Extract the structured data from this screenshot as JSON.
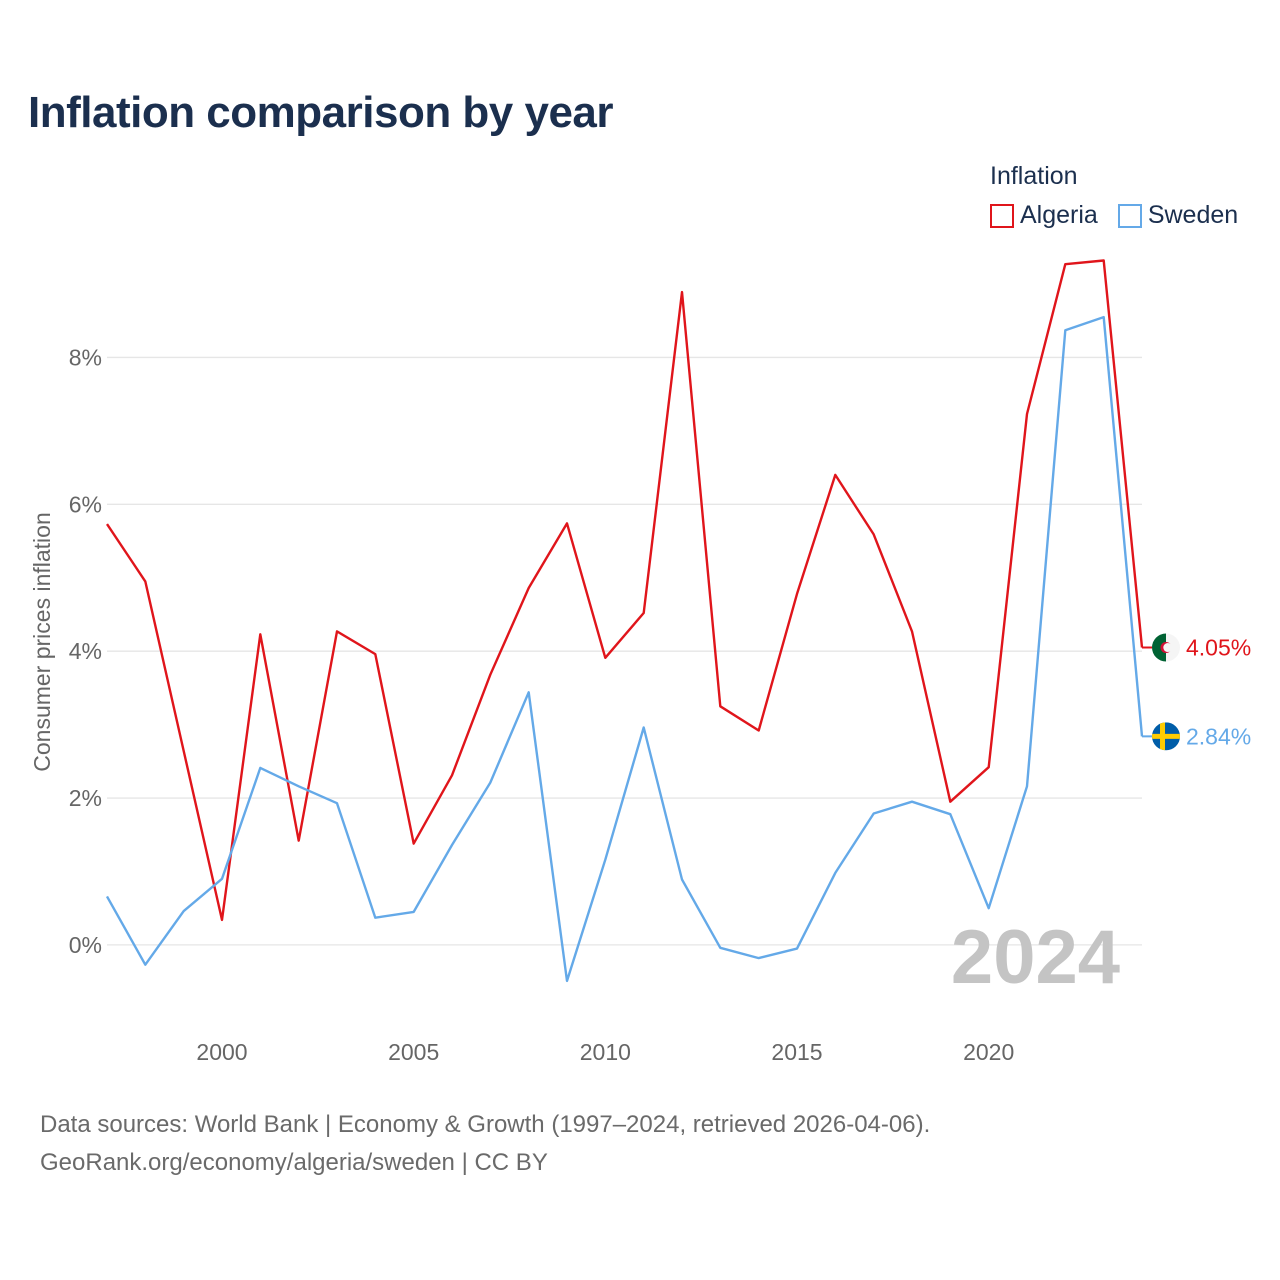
{
  "chart_data": {
    "type": "line",
    "title": "Inflation comparison by year",
    "legend_title": "Inflation",
    "ylabel": "Consumer prices inflation",
    "xlabel": "",
    "x": [
      1997,
      1998,
      1999,
      2000,
      2001,
      2002,
      2003,
      2004,
      2005,
      2006,
      2007,
      2008,
      2009,
      2010,
      2011,
      2012,
      2013,
      2014,
      2015,
      2016,
      2017,
      2018,
      2019,
      2020,
      2021,
      2022,
      2023,
      2024
    ],
    "xlim": [
      1997,
      2024
    ],
    "ylim": [
      -1.05,
      9.3
    ],
    "xticks": [
      2000,
      2005,
      2010,
      2015,
      2020
    ],
    "yticks": [
      0,
      2,
      4,
      6,
      8
    ],
    "ytick_labels": [
      "0%",
      "2%",
      "4%",
      "6%",
      "8%"
    ],
    "xtick_labels": [
      "2000",
      "2005",
      "2010",
      "2015",
      "2020"
    ],
    "grid": true,
    "legend_position": "top-right",
    "highlight_year": "2024",
    "series": [
      {
        "name": "Algeria",
        "color": "#e0151b",
        "end_label": "4.05%",
        "flag": "algeria-flag-icon",
        "values": [
          5.73,
          4.95,
          2.64,
          0.34,
          4.23,
          1.42,
          4.27,
          3.96,
          1.38,
          2.31,
          3.68,
          4.86,
          5.74,
          3.91,
          4.52,
          8.89,
          3.25,
          2.92,
          4.78,
          6.4,
          5.59,
          4.27,
          1.95,
          2.42,
          7.23,
          9.27,
          9.32,
          4.05
        ]
      },
      {
        "name": "Sweden",
        "color": "#64a9e8",
        "end_label": "2.84%",
        "flag": "sweden-flag-icon",
        "values": [
          0.66,
          -0.27,
          0.46,
          0.9,
          2.41,
          2.16,
          1.93,
          0.37,
          0.45,
          1.36,
          2.21,
          3.44,
          -0.49,
          1.16,
          2.96,
          0.89,
          -0.04,
          -0.18,
          -0.05,
          0.98,
          1.79,
          1.95,
          1.78,
          0.5,
          2.16,
          8.37,
          8.55,
          2.84
        ]
      }
    ]
  },
  "footer": {
    "line1": "Data sources: World Bank | Economy & Growth (1997–2024, retrieved 2026-04-06).",
    "line2": "GeoRank.org/economy/algeria/sweden | CC BY"
  }
}
